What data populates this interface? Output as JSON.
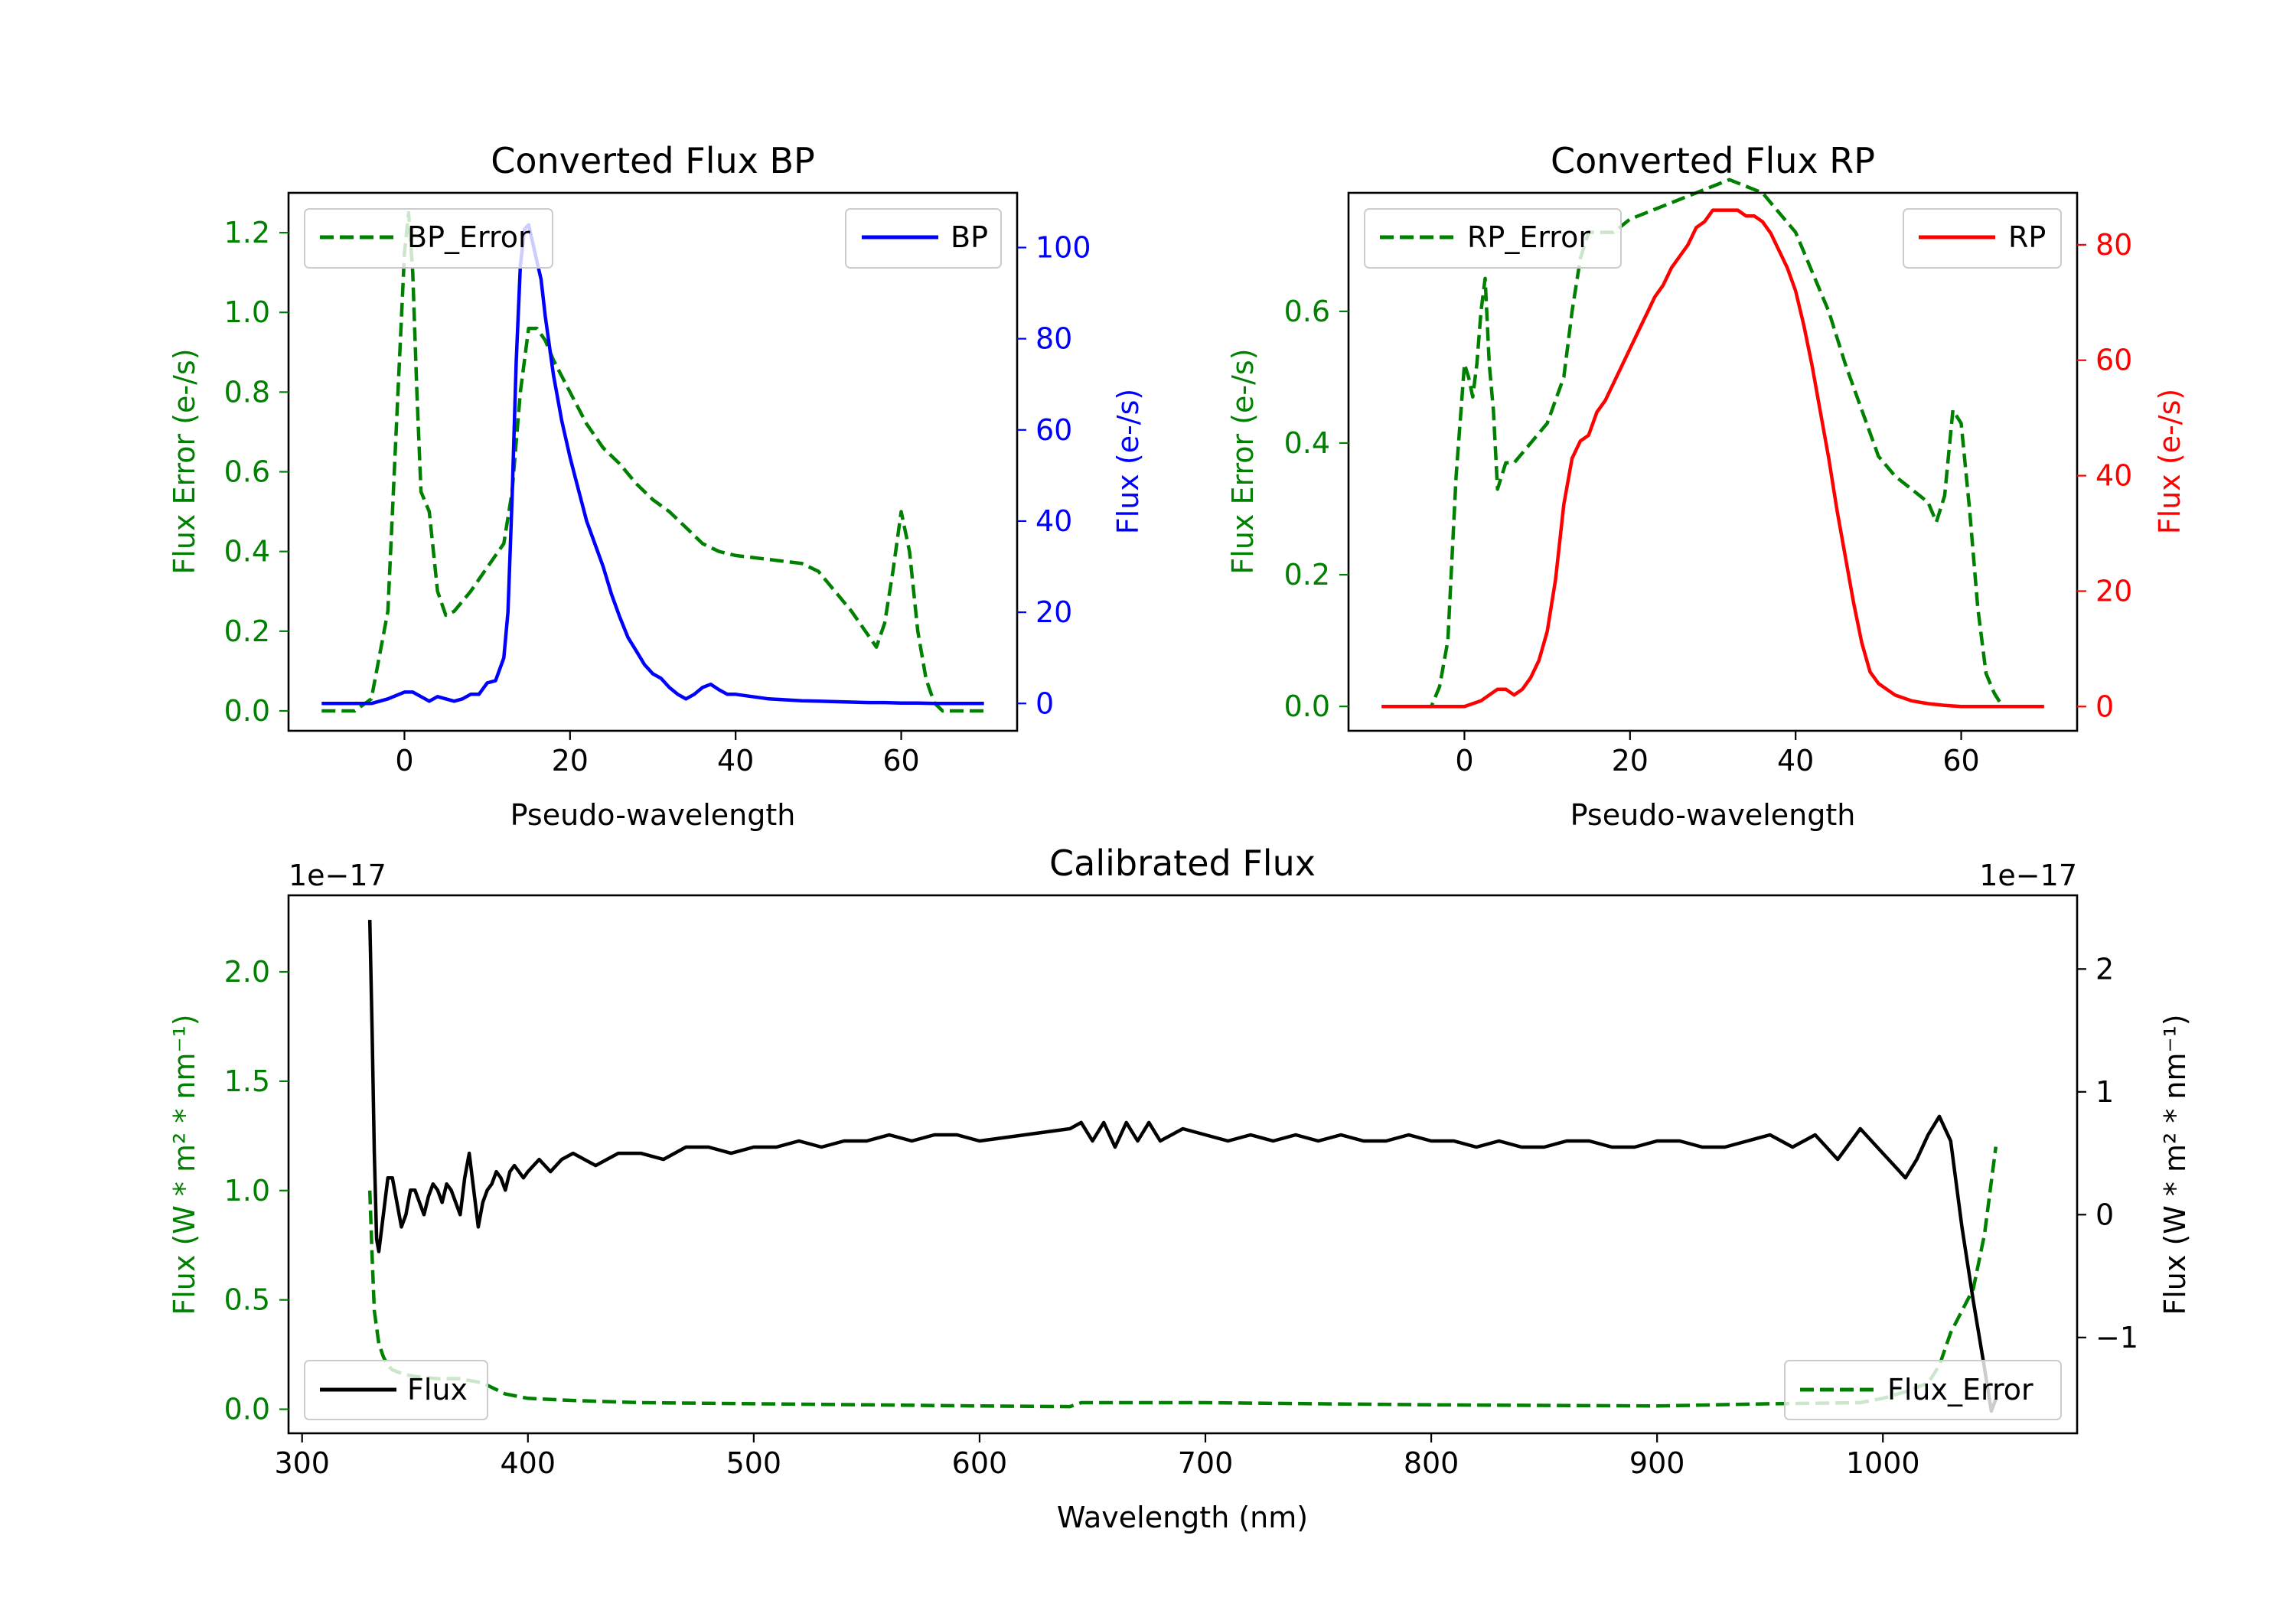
{
  "colors": {
    "green": "#008000",
    "blue": "#0000ff",
    "red": "#ff0000",
    "black": "#000000"
  },
  "chart_data": [
    {
      "id": "bp",
      "type": "line",
      "title": "Converted Flux BP",
      "xlabel": "Pseudo-wavelength",
      "ylabel_left": "Flux Error (e-/s)",
      "ylabel_right": "Flux (e-/s)",
      "xlim": [
        -14,
        74
      ],
      "ylim_left": [
        -0.05,
        1.3
      ],
      "ylim_right": [
        -6,
        112
      ],
      "xticks": [
        "0",
        "20",
        "40",
        "60"
      ],
      "yticks_left": [
        "0.0",
        "0.2",
        "0.4",
        "0.6",
        "0.8",
        "1.0",
        "1.2"
      ],
      "yticks_right": [
        "0",
        "20",
        "40",
        "60",
        "80",
        "100"
      ],
      "series": [
        {
          "name": "BP_Error",
          "axis": "left",
          "style": "dashed",
          "color": "#008000",
          "x": [
            -10,
            -6,
            -4,
            -2,
            -1,
            0,
            0.5,
            1,
            1.5,
            2,
            3,
            4,
            5,
            6,
            8,
            10,
            12,
            13,
            14,
            15,
            16,
            17,
            18,
            20,
            22,
            24,
            26,
            28,
            30,
            32,
            34,
            36,
            38,
            40,
            44,
            48,
            50,
            52,
            54,
            56,
            57,
            58,
            59,
            60,
            61,
            62,
            63,
            64,
            65,
            67,
            70
          ],
          "y": [
            0,
            0,
            0.03,
            0.25,
            0.7,
            1.15,
            1.25,
            1.1,
            0.8,
            0.55,
            0.5,
            0.3,
            0.24,
            0.25,
            0.3,
            0.36,
            0.42,
            0.55,
            0.8,
            0.96,
            0.96,
            0.93,
            0.88,
            0.8,
            0.72,
            0.66,
            0.62,
            0.57,
            0.53,
            0.5,
            0.46,
            0.42,
            0.4,
            0.39,
            0.38,
            0.37,
            0.35,
            0.3,
            0.25,
            0.19,
            0.16,
            0.22,
            0.35,
            0.5,
            0.4,
            0.2,
            0.08,
            0.02,
            0,
            0,
            0
          ]
        },
        {
          "name": "BP",
          "axis": "right",
          "style": "solid",
          "color": "#0000ff",
          "x": [
            -10,
            -4,
            -2,
            0,
            1,
            2,
            3,
            4,
            5,
            6,
            7,
            8,
            9,
            10,
            11,
            12,
            12.5,
            13,
            13.5,
            14,
            14.5,
            15,
            15.5,
            16,
            16.5,
            17,
            18,
            19,
            20,
            21,
            22,
            23,
            24,
            25,
            26,
            27,
            28,
            29,
            30,
            31,
            32,
            33,
            34,
            35,
            36,
            37,
            38,
            39,
            40,
            42,
            44,
            46,
            48,
            50,
            52,
            54,
            56,
            58,
            60,
            62,
            64,
            66,
            68,
            70
          ],
          "y": [
            0,
            0,
            1,
            2.5,
            2.5,
            1.5,
            0.5,
            1.5,
            1,
            0.5,
            1,
            2,
            2,
            4.5,
            5,
            10,
            20,
            45,
            75,
            96,
            104,
            105,
            101,
            97,
            93,
            85,
            72,
            62,
            54,
            47,
            40,
            35,
            30,
            24,
            19,
            14.5,
            11.5,
            8.5,
            6.5,
            5.5,
            3.5,
            2,
            1,
            2,
            3.5,
            4.2,
            3,
            2,
            2,
            1.5,
            1,
            0.8,
            0.6,
            0.5,
            0.4,
            0.3,
            0.2,
            0.2,
            0.1,
            0.1,
            0,
            0,
            0,
            0
          ]
        }
      ],
      "legend": [
        "BP_Error",
        "BP"
      ]
    },
    {
      "id": "rp",
      "type": "line",
      "title": "Converted Flux RP",
      "xlabel": "Pseudo-wavelength",
      "ylabel_left": "Flux Error (e-/s)",
      "ylabel_right": "Flux (e-/s)",
      "xlim": [
        -14,
        74
      ],
      "ylim_left": [
        -0.037,
        0.78
      ],
      "ylim_right": [
        -4.2,
        89
      ],
      "xticks": [
        "0",
        "20",
        "40",
        "60"
      ],
      "yticks_left": [
        "0.0",
        "0.2",
        "0.4",
        "0.6"
      ],
      "yticks_right": [
        "0",
        "20",
        "40",
        "60",
        "80"
      ],
      "series": [
        {
          "name": "RP_Error",
          "axis": "left",
          "style": "dashed",
          "color": "#008000",
          "x": [
            -10,
            -5,
            -4,
            -3,
            -2,
            -1,
            0,
            0.5,
            1,
            1.5,
            2,
            2.5,
            3,
            3.5,
            4,
            5,
            6,
            8,
            10,
            12,
            13,
            14,
            15,
            16,
            18,
            20,
            22,
            24,
            26,
            28,
            30,
            32,
            34,
            36,
            38,
            40,
            42,
            44,
            46,
            48,
            50,
            52,
            54,
            56,
            57,
            58,
            59,
            60,
            61,
            62,
            63,
            64,
            65,
            67,
            70
          ],
          "y": [
            0,
            0,
            0,
            0.03,
            0.1,
            0.35,
            0.52,
            0.5,
            0.47,
            0.52,
            0.6,
            0.65,
            0.52,
            0.45,
            0.33,
            0.37,
            0.37,
            0.4,
            0.43,
            0.5,
            0.6,
            0.68,
            0.72,
            0.72,
            0.72,
            0.74,
            0.75,
            0.76,
            0.77,
            0.78,
            0.79,
            0.8,
            0.79,
            0.78,
            0.75,
            0.72,
            0.66,
            0.6,
            0.52,
            0.45,
            0.38,
            0.35,
            0.33,
            0.31,
            0.28,
            0.32,
            0.45,
            0.43,
            0.3,
            0.15,
            0.05,
            0.02,
            0,
            0,
            0
          ]
        },
        {
          "name": "RP",
          "axis": "right",
          "style": "solid",
          "color": "#ff0000",
          "x": [
            -10,
            -4,
            -2,
            0,
            1,
            2,
            3,
            4,
            5,
            6,
            7,
            8,
            9,
            10,
            11,
            12,
            13,
            14,
            15,
            16,
            17,
            18,
            19,
            20,
            21,
            22,
            23,
            24,
            25,
            26,
            27,
            28,
            29,
            30,
            31,
            32,
            33,
            34,
            35,
            36,
            37,
            38,
            39,
            40,
            41,
            42,
            43,
            44,
            45,
            46,
            47,
            48,
            49,
            50,
            51,
            52,
            54,
            56,
            58,
            60,
            64,
            70
          ],
          "y": [
            0,
            0,
            0,
            0,
            0.5,
            1,
            2,
            3,
            3,
            2,
            3,
            5,
            8,
            13,
            22,
            35,
            43,
            46,
            47,
            51,
            53,
            56,
            59,
            62,
            65,
            68,
            71,
            73,
            76,
            78,
            80,
            83,
            84,
            86,
            86,
            86,
            86,
            85,
            85,
            84,
            82,
            79,
            76,
            72,
            66,
            59,
            51,
            43,
            34,
            26,
            18,
            11,
            6,
            4,
            3,
            2,
            1,
            0.5,
            0.2,
            0,
            0,
            0
          ]
        }
      ],
      "legend": [
        "RP_Error",
        "RP"
      ]
    },
    {
      "id": "cal",
      "type": "line",
      "title": "Calibrated Flux",
      "xlabel": "Wavelength (nm)",
      "ylabel_left": "Flux (W * m² * nm⁻¹)",
      "ylabel_right": "Flux (W * m² * nm⁻¹)",
      "offset_left": "1e−17",
      "offset_right": "1e−17",
      "xlim": [
        294,
        1086
      ],
      "ylim_left": [
        -0.11,
        2.35
      ],
      "ylim_right": [
        -1.78,
        2.6
      ],
      "xticks": [
        "300",
        "400",
        "500",
        "600",
        "700",
        "800",
        "900",
        "1000"
      ],
      "yticks_left": [
        "0.0",
        "0.5",
        "1.0",
        "1.5",
        "2.0"
      ],
      "yticks_right": [
        "−1",
        "0",
        "1",
        "2"
      ],
      "series": [
        {
          "name": "Flux_Error",
          "axis": "left",
          "style": "dashed",
          "color": "#008000",
          "x": [
            330,
            331,
            332,
            334,
            336,
            338,
            340,
            345,
            350,
            360,
            370,
            380,
            390,
            400,
            420,
            450,
            500,
            550,
            600,
            640,
            645,
            700,
            800,
            900,
            950,
            990,
            1000,
            1010,
            1020,
            1025,
            1030,
            1035,
            1040,
            1045,
            1050
          ],
          "y": [
            1.0,
            0.7,
            0.45,
            0.3,
            0.24,
            0.2,
            0.18,
            0.16,
            0.15,
            0.14,
            0.14,
            0.12,
            0.07,
            0.05,
            0.04,
            0.03,
            0.025,
            0.02,
            0.015,
            0.012,
            0.03,
            0.03,
            0.02,
            0.015,
            0.025,
            0.03,
            0.05,
            0.08,
            0.12,
            0.2,
            0.35,
            0.45,
            0.55,
            0.8,
            1.2
          ]
        },
        {
          "name": "Flux",
          "axis": "right",
          "style": "solid",
          "color": "#000000",
          "x": [
            330,
            331,
            332,
            333,
            334,
            336,
            338,
            340,
            342,
            344,
            346,
            348,
            350,
            352,
            354,
            356,
            358,
            360,
            362,
            364,
            366,
            368,
            370,
            372,
            374,
            376,
            378,
            380,
            382,
            384,
            386,
            388,
            390,
            392,
            394,
            396,
            398,
            400,
            405,
            410,
            415,
            420,
            430,
            440,
            450,
            460,
            470,
            480,
            490,
            500,
            510,
            520,
            530,
            540,
            550,
            560,
            570,
            580,
            590,
            600,
            620,
            640,
            645,
            650,
            655,
            660,
            665,
            670,
            675,
            680,
            690,
            700,
            710,
            720,
            730,
            740,
            750,
            760,
            770,
            780,
            790,
            800,
            810,
            820,
            830,
            840,
            850,
            860,
            870,
            880,
            890,
            900,
            910,
            920,
            930,
            940,
            950,
            960,
            970,
            980,
            990,
            1000,
            1005,
            1010,
            1015,
            1020,
            1025,
            1030,
            1035,
            1040,
            1045,
            1048,
            1050
          ],
          "y": [
            2.4,
            1.5,
            0.5,
            -0.2,
            -0.3,
            0,
            0.3,
            0.3,
            0.1,
            -0.1,
            0,
            0.2,
            0.2,
            0.1,
            0,
            0.15,
            0.25,
            0.2,
            0.1,
            0.25,
            0.2,
            0.1,
            0,
            0.3,
            0.5,
            0.2,
            -0.1,
            0.1,
            0.2,
            0.25,
            0.35,
            0.3,
            0.2,
            0.35,
            0.4,
            0.35,
            0.3,
            0.35,
            0.45,
            0.35,
            0.45,
            0.5,
            0.4,
            0.5,
            0.5,
            0.45,
            0.55,
            0.55,
            0.5,
            0.55,
            0.55,
            0.6,
            0.55,
            0.6,
            0.6,
            0.65,
            0.6,
            0.65,
            0.65,
            0.6,
            0.65,
            0.7,
            0.75,
            0.6,
            0.75,
            0.55,
            0.75,
            0.6,
            0.75,
            0.6,
            0.7,
            0.65,
            0.6,
            0.65,
            0.6,
            0.65,
            0.6,
            0.65,
            0.6,
            0.6,
            0.65,
            0.6,
            0.6,
            0.55,
            0.6,
            0.55,
            0.55,
            0.6,
            0.6,
            0.55,
            0.55,
            0.6,
            0.6,
            0.55,
            0.55,
            0.6,
            0.65,
            0.55,
            0.65,
            0.45,
            0.7,
            0.5,
            0.4,
            0.3,
            0.45,
            0.65,
            0.8,
            0.6,
            -0.1,
            -0.7,
            -1.25,
            -1.6,
            -1.5
          ]
        }
      ],
      "legend": [
        "Flux",
        "Flux_Error"
      ]
    }
  ]
}
